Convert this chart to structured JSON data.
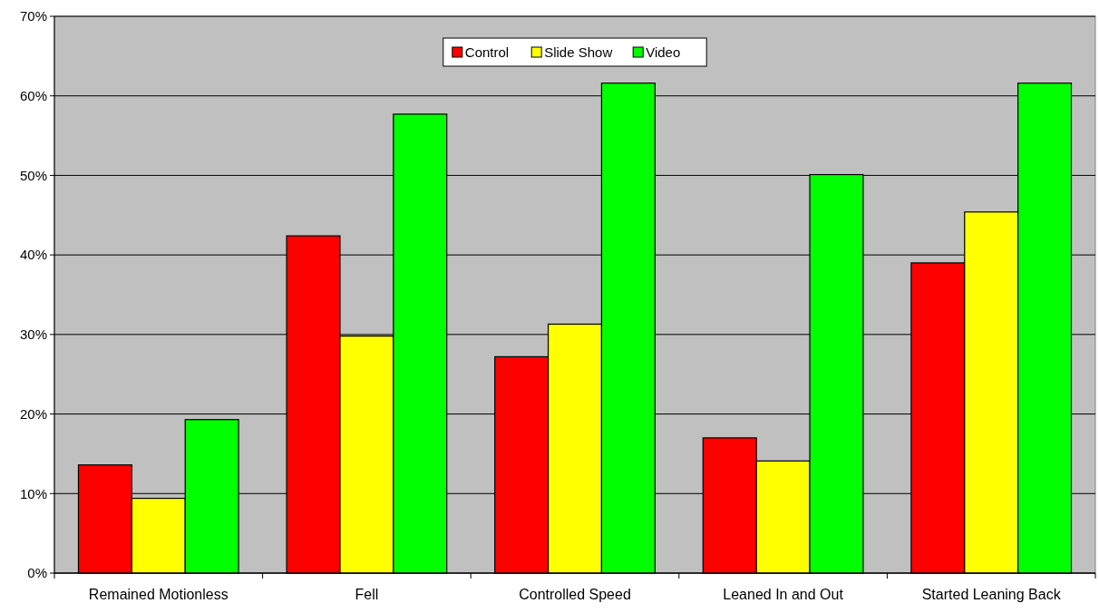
{
  "chart_data": {
    "type": "bar",
    "categories": [
      "Remained Motionless",
      "Fell",
      "Controlled Speed",
      "Leaned In and Out",
      "Started Leaning Back"
    ],
    "series": [
      {
        "name": "Control",
        "color": "#ff0000",
        "values": [
          13.6,
          42.4,
          27.2,
          17.0,
          39.0
        ]
      },
      {
        "name": "Slide Show",
        "color": "#ffff00",
        "values": [
          9.4,
          29.8,
          31.3,
          14.1,
          45.4
        ]
      },
      {
        "name": "Video",
        "color": "#00ff00",
        "values": [
          19.3,
          57.7,
          61.6,
          50.1,
          61.6
        ]
      }
    ],
    "ylim": [
      0,
      70
    ],
    "yticks": [
      {
        "value": 0,
        "label": "0%"
      },
      {
        "value": 10,
        "label": "10%"
      },
      {
        "value": 20,
        "label": "20%"
      },
      {
        "value": 30,
        "label": "30%"
      },
      {
        "value": 40,
        "label": "40%"
      },
      {
        "value": 50,
        "label": "50%"
      },
      {
        "value": 60,
        "label": "60%"
      },
      {
        "value": 70,
        "label": "70%"
      }
    ],
    "grid": "y",
    "legend": "top"
  }
}
